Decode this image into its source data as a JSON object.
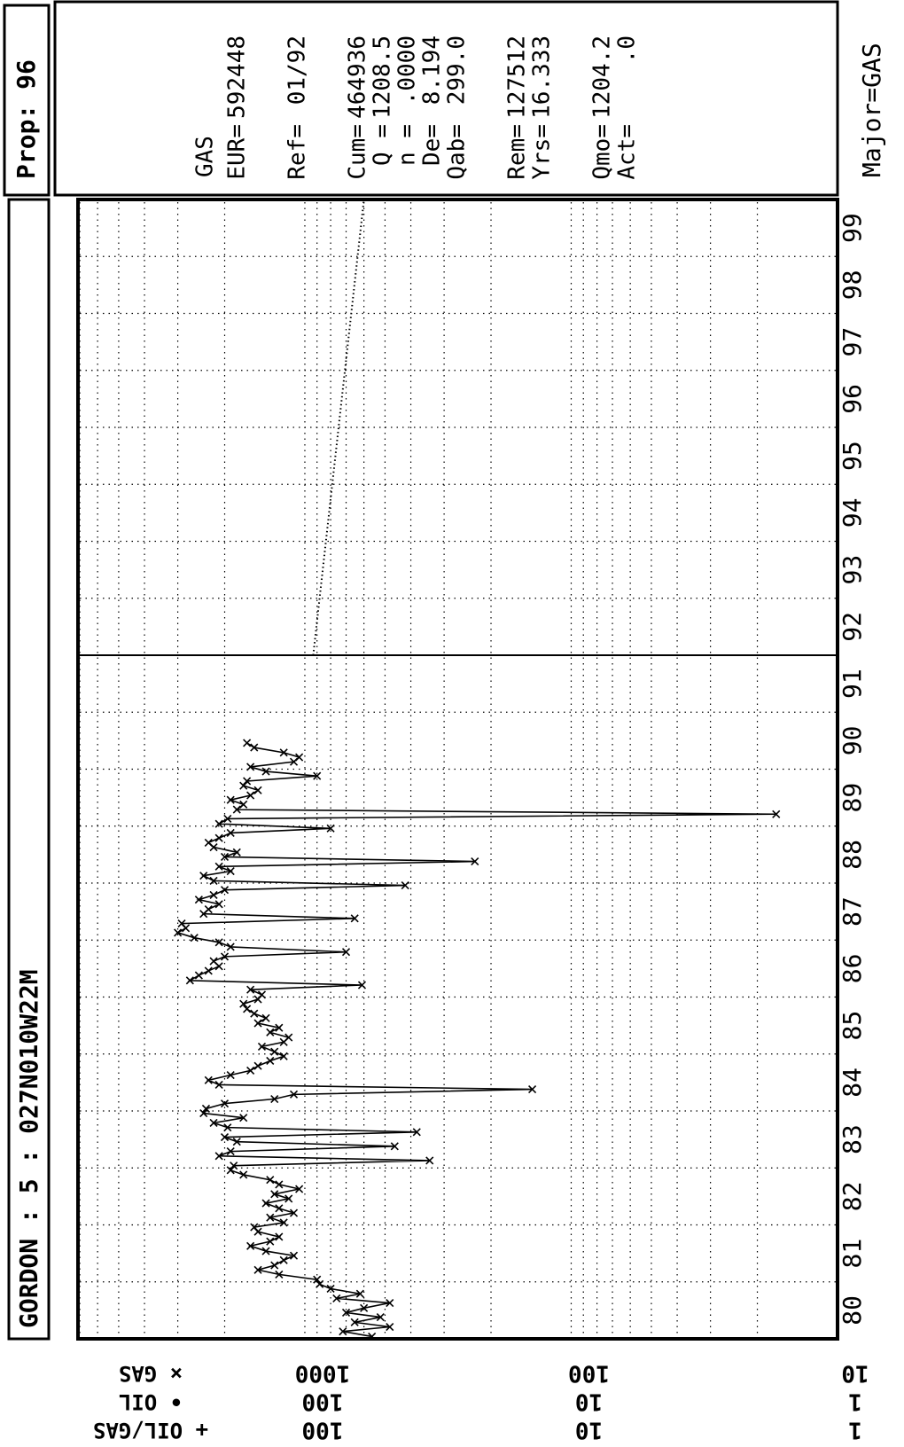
{
  "chart_data": {
    "type": "line",
    "title": "GORDON : 5 : 027N010W22M",
    "prop_label": "Prop: 96",
    "major_label": "Major=GAS",
    "log_y": true,
    "grid": true,
    "xlim": [
      1980,
      2000
    ],
    "ylim": [
      10,
      7000
    ],
    "xticks": [
      {
        "value": 1980,
        "label": "80"
      },
      {
        "value": 1981,
        "label": "81"
      },
      {
        "value": 1982,
        "label": "82"
      },
      {
        "value": 1983,
        "label": "83"
      },
      {
        "value": 1984,
        "label": "84"
      },
      {
        "value": 1985,
        "label": "85"
      },
      {
        "value": 1986,
        "label": "86"
      },
      {
        "value": 1987,
        "label": "87"
      },
      {
        "value": 1988,
        "label": "88"
      },
      {
        "value": 1989,
        "label": "89"
      },
      {
        "value": 1990,
        "label": "90"
      },
      {
        "value": 1991,
        "label": "91"
      },
      {
        "value": 1992,
        "label": "92"
      },
      {
        "value": 1993,
        "label": "93"
      },
      {
        "value": 1994,
        "label": "94"
      },
      {
        "value": 1995,
        "label": "95"
      },
      {
        "value": 1996,
        "label": "96"
      },
      {
        "value": 1997,
        "label": "97"
      },
      {
        "value": 1998,
        "label": "98"
      },
      {
        "value": 1999,
        "label": "99"
      }
    ],
    "yticks": [
      10,
      100,
      1000
    ],
    "y_minor_grid": [
      20,
      30,
      40,
      50,
      60,
      70,
      80,
      90,
      200,
      300,
      400,
      500,
      600,
      700,
      800,
      900,
      2000,
      3000,
      4000,
      5000,
      6000,
      7000
    ],
    "axis_rows": [
      {
        "symbol": "×",
        "name": "GAS",
        "tick_labels": [
          "10",
          "100",
          "1000"
        ]
      },
      {
        "symbol": "•",
        "name": "OIL",
        "tick_labels": [
          "1",
          "10",
          "100"
        ]
      },
      {
        "symbol": "+",
        "name": "OIL/GAS",
        "tick_labels": [
          "1",
          "10",
          "100"
        ]
      }
    ],
    "series": [
      {
        "name": "GAS",
        "symbol": "×",
        "color": "#000000",
        "x": [
          1980.04,
          1980.13,
          1980.21,
          1980.29,
          1980.38,
          1980.46,
          1980.54,
          1980.63,
          1980.71,
          1980.79,
          1980.88,
          1980.96,
          1981.04,
          1981.13,
          1981.21,
          1981.29,
          1981.38,
          1981.46,
          1981.54,
          1981.63,
          1981.71,
          1981.79,
          1981.88,
          1981.96,
          1982.04,
          1982.13,
          1982.21,
          1982.29,
          1982.38,
          1982.46,
          1982.54,
          1982.63,
          1982.71,
          1982.79,
          1982.88,
          1982.96,
          1983.04,
          1983.13,
          1983.21,
          1983.29,
          1983.38,
          1983.46,
          1983.54,
          1983.63,
          1983.71,
          1983.79,
          1983.88,
          1983.96,
          1984.04,
          1984.13,
          1984.21,
          1984.29,
          1984.38,
          1984.46,
          1984.54,
          1984.63,
          1984.71,
          1984.79,
          1984.88,
          1984.96,
          1985.04,
          1985.13,
          1985.21,
          1985.29,
          1985.38,
          1985.46,
          1985.54,
          1985.63,
          1985.71,
          1985.79,
          1985.88,
          1985.96,
          1986.04,
          1986.13,
          1986.21,
          1986.29,
          1986.38,
          1986.46,
          1986.54,
          1986.63,
          1986.71,
          1986.79,
          1986.88,
          1986.96,
          1987.04,
          1987.13,
          1987.21,
          1987.29,
          1987.38,
          1987.46,
          1987.54,
          1987.63,
          1987.71,
          1987.79,
          1987.88,
          1987.96,
          1988.04,
          1988.13,
          1988.21,
          1988.29,
          1988.38,
          1988.46,
          1988.54,
          1988.63,
          1988.71,
          1988.79,
          1988.88,
          1988.96,
          1989.04,
          1989.13,
          1989.21,
          1989.29,
          1989.38,
          1989.46,
          1989.54,
          1989.63,
          1989.71,
          1989.79,
          1989.88,
          1989.96,
          1990.04,
          1990.13,
          1990.21,
          1990.29,
          1990.38,
          1990.46
        ],
        "values": [
          560,
          720,
          480,
          650,
          520,
          700,
          600,
          480,
          760,
          620,
          800,
          880,
          900,
          1250,
          1500,
          1300,
          1200,
          1100,
          1400,
          1600,
          1350,
          1250,
          1500,
          1550,
          1200,
          1350,
          1100,
          1250,
          1400,
          1150,
          1300,
          1050,
          1250,
          1350,
          1700,
          1900,
          1850,
          340,
          2100,
          1900,
          460,
          1800,
          2000,
          380,
          1950,
          2200,
          1700,
          2400,
          2350,
          2000,
          1300,
          1100,
          140,
          2100,
          2300,
          1900,
          1600,
          1500,
          1350,
          1200,
          1300,
          1450,
          1200,
          1150,
          1350,
          1250,
          1500,
          1400,
          1550,
          1650,
          1700,
          1500,
          1450,
          1600,
          610,
          2700,
          2500,
          2300,
          2100,
          2200,
          2000,
          700,
          1900,
          2100,
          2600,
          3000,
          2800,
          2900,
          650,
          2400,
          2300,
          2100,
          2500,
          2200,
          2000,
          420,
          2200,
          2400,
          1900,
          2100,
          230,
          2000,
          1800,
          2200,
          2300,
          2100,
          1900,
          800,
          2100,
          1950,
          17,
          1800,
          1700,
          1900,
          1600,
          1500,
          1700,
          1650,
          900,
          1400,
          1600,
          1100,
          1050,
          1200,
          1550,
          1650
        ]
      }
    ],
    "forecast": {
      "x": [
        1992,
        2000
      ],
      "values": [
        930,
        600
      ]
    },
    "ref_x": 1992,
    "info": {
      "heading": "GAS",
      "groups": [
        [
          [
            "EUR=",
            "592448"
          ]
        ],
        [
          [
            "Ref=",
            "01/92"
          ]
        ],
        [
          [
            "Cum=",
            "464936"
          ],
          [
            "Q =",
            "1208.5"
          ],
          [
            "n =",
            ".0000"
          ],
          [
            "De=",
            "8.194"
          ],
          [
            "Qab=",
            "299.0"
          ]
        ],
        [
          [
            "Rem=",
            "127512"
          ],
          [
            "Yrs=",
            "16.333"
          ]
        ],
        [
          [
            "Qmo=",
            "1204.2"
          ],
          [
            "Act=",
            ".0"
          ]
        ]
      ]
    }
  }
}
